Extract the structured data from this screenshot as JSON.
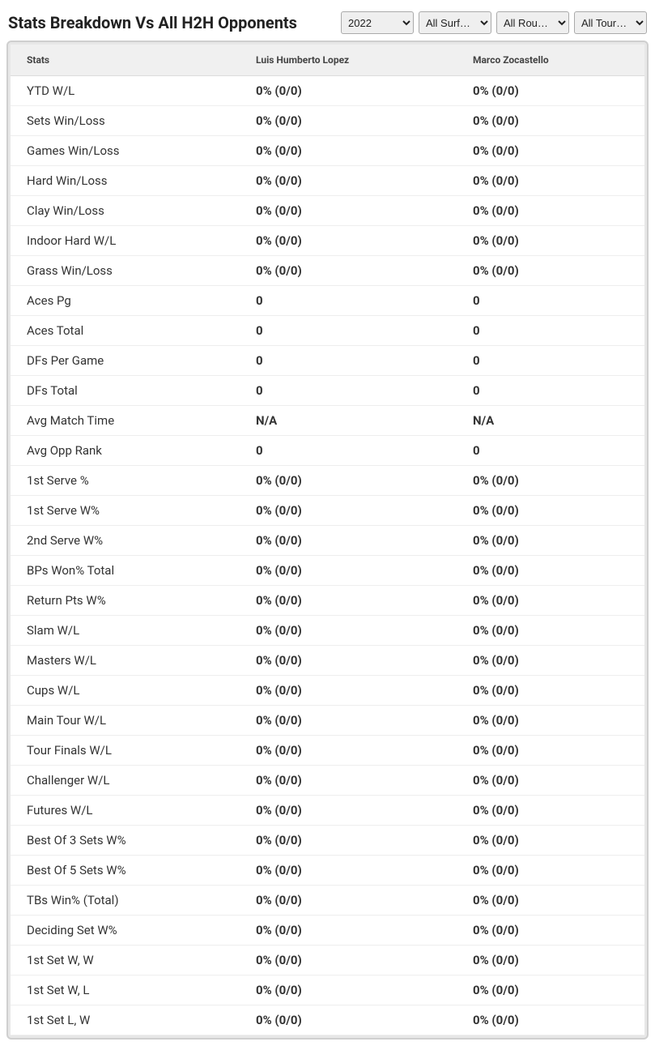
{
  "title": "Stats Breakdown Vs All H2H Opponents",
  "filters": {
    "year": {
      "selected": "2022",
      "options": [
        "2022"
      ]
    },
    "surface": {
      "selected": "All Surf…",
      "options": [
        "All Surf…"
      ]
    },
    "round": {
      "selected": "All Rou…",
      "options": [
        "All Rou…"
      ]
    },
    "tour": {
      "selected": "All Tour…",
      "options": [
        "All Tour…"
      ]
    }
  },
  "columns": {
    "stats": "Stats",
    "player1": "Luis Humberto Lopez",
    "player2": "Marco Zocastello"
  },
  "rows": [
    {
      "label": "YTD W/L",
      "p1": "0% (0/0)",
      "p2": "0% (0/0)"
    },
    {
      "label": "Sets Win/Loss",
      "p1": "0% (0/0)",
      "p2": "0% (0/0)"
    },
    {
      "label": "Games Win/Loss",
      "p1": "0% (0/0)",
      "p2": "0% (0/0)"
    },
    {
      "label": "Hard Win/Loss",
      "p1": "0% (0/0)",
      "p2": "0% (0/0)"
    },
    {
      "label": "Clay Win/Loss",
      "p1": "0% (0/0)",
      "p2": "0% (0/0)"
    },
    {
      "label": "Indoor Hard W/L",
      "p1": "0% (0/0)",
      "p2": "0% (0/0)"
    },
    {
      "label": "Grass Win/Loss",
      "p1": "0% (0/0)",
      "p2": "0% (0/0)"
    },
    {
      "label": "Aces Pg",
      "p1": "0",
      "p2": "0"
    },
    {
      "label": "Aces Total",
      "p1": "0",
      "p2": "0"
    },
    {
      "label": "DFs Per Game",
      "p1": "0",
      "p2": "0"
    },
    {
      "label": "DFs Total",
      "p1": "0",
      "p2": "0"
    },
    {
      "label": "Avg Match Time",
      "p1": "N/A",
      "p2": "N/A"
    },
    {
      "label": "Avg Opp Rank",
      "p1": "0",
      "p2": "0"
    },
    {
      "label": "1st Serve %",
      "p1": "0% (0/0)",
      "p2": "0% (0/0)"
    },
    {
      "label": "1st Serve W%",
      "p1": "0% (0/0)",
      "p2": "0% (0/0)"
    },
    {
      "label": "2nd Serve W%",
      "p1": "0% (0/0)",
      "p2": "0% (0/0)"
    },
    {
      "label": "BPs Won% Total",
      "p1": "0% (0/0)",
      "p2": "0% (0/0)"
    },
    {
      "label": "Return Pts W%",
      "p1": "0% (0/0)",
      "p2": "0% (0/0)"
    },
    {
      "label": "Slam W/L",
      "p1": "0% (0/0)",
      "p2": "0% (0/0)"
    },
    {
      "label": "Masters W/L",
      "p1": "0% (0/0)",
      "p2": "0% (0/0)"
    },
    {
      "label": "Cups W/L",
      "p1": "0% (0/0)",
      "p2": "0% (0/0)"
    },
    {
      "label": "Main Tour W/L",
      "p1": "0% (0/0)",
      "p2": "0% (0/0)"
    },
    {
      "label": "Tour Finals W/L",
      "p1": "0% (0/0)",
      "p2": "0% (0/0)"
    },
    {
      "label": "Challenger W/L",
      "p1": "0% (0/0)",
      "p2": "0% (0/0)"
    },
    {
      "label": "Futures W/L",
      "p1": "0% (0/0)",
      "p2": "0% (0/0)"
    },
    {
      "label": "Best Of 3 Sets W%",
      "p1": "0% (0/0)",
      "p2": "0% (0/0)"
    },
    {
      "label": "Best Of 5 Sets W%",
      "p1": "0% (0/0)",
      "p2": "0% (0/0)"
    },
    {
      "label": "TBs Win% (Total)",
      "p1": "0% (0/0)",
      "p2": "0% (0/0)"
    },
    {
      "label": "Deciding Set W%",
      "p1": "0% (0/0)",
      "p2": "0% (0/0)"
    },
    {
      "label": "1st Set W, W",
      "p1": "0% (0/0)",
      "p2": "0% (0/0)"
    },
    {
      "label": "1st Set W, L",
      "p1": "0% (0/0)",
      "p2": "0% (0/0)"
    },
    {
      "label": "1st Set L, W",
      "p1": "0% (0/0)",
      "p2": "0% (0/0)"
    }
  ],
  "style": {
    "title_fontsize": 20,
    "header_bg": "#f0f0f0",
    "header_fontsize": 12,
    "row_fontsize": 15,
    "border_color": "#cfcfcf",
    "row_border": "#eeeeee",
    "text_color": "#333333",
    "bold_value": 700
  }
}
